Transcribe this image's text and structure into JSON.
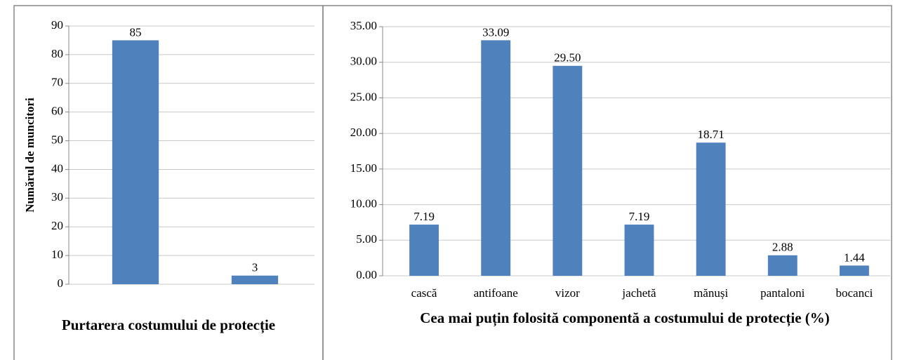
{
  "chart_data": [
    {
      "type": "bar",
      "y_label": "Numărul de muncitori",
      "x_label": "Purtarera costumului de protecție",
      "categories": [
        null,
        null
      ],
      "values": [
        85,
        3
      ],
      "color": "#4f81bd",
      "ylim": [
        0,
        90
      ],
      "yticks": [
        0,
        10,
        20,
        30,
        40,
        50,
        60,
        70,
        80,
        90
      ],
      "grid": true
    },
    {
      "type": "bar",
      "x_label": "Cea mai puțin folosită componentă a costumului de protecție (%)",
      "categories": [
        "cască",
        "antifoane",
        "vizor",
        "jachetă",
        "mănuși",
        "pantaloni",
        "bocanci"
      ],
      "values": [
        7.19,
        33.09,
        29.5,
        7.19,
        18.71,
        2.88,
        1.44
      ],
      "value_labels": [
        "7.19",
        "33.09",
        "29.50",
        "7.19",
        "18.71",
        "2.88",
        "1.44"
      ],
      "color": "#4f81bd",
      "ylim": [
        0,
        35
      ],
      "yticks": [
        {
          "value": 0,
          "label": "0.00"
        },
        {
          "value": 5,
          "label": "5.00"
        },
        {
          "value": 10,
          "label": "10.00"
        },
        {
          "value": 15,
          "label": "15.00"
        },
        {
          "value": 20,
          "label": "20.00"
        },
        {
          "value": 25,
          "label": "25.00"
        },
        {
          "value": 30,
          "label": "30.00"
        },
        {
          "value": 35,
          "label": "35.00"
        }
      ],
      "grid": true
    }
  ]
}
